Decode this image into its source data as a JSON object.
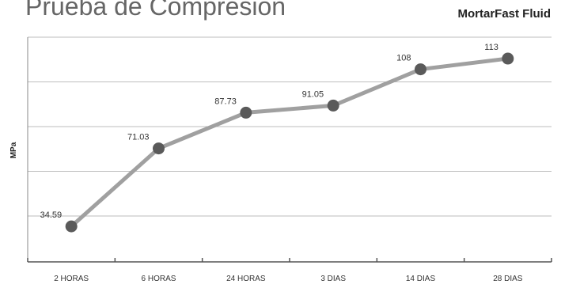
{
  "title": "Prueba de Compresión",
  "product": "MortarFast Fluid",
  "chart_data": {
    "type": "line",
    "title": "Prueba de Compresión",
    "xlabel": "",
    "ylabel": "MPa",
    "categories": [
      "2 HORAS",
      "6 HORAS",
      "24 HORAS",
      "3 DIAS",
      "14 DIAS",
      "28 DIAS"
    ],
    "series": [
      {
        "values": [
          34.59,
          71.03,
          87.73,
          91.05,
          108,
          113
        ]
      }
    ],
    "data_labels": [
      "34.59",
      "71.03",
      "87.73",
      "91.05",
      "108",
      "113"
    ],
    "ylim": [
      18,
      123
    ],
    "grid": true,
    "line_color": "#a0a0a0",
    "marker_color": "#5a5a5a",
    "grid_color": "#bdbdbd"
  }
}
